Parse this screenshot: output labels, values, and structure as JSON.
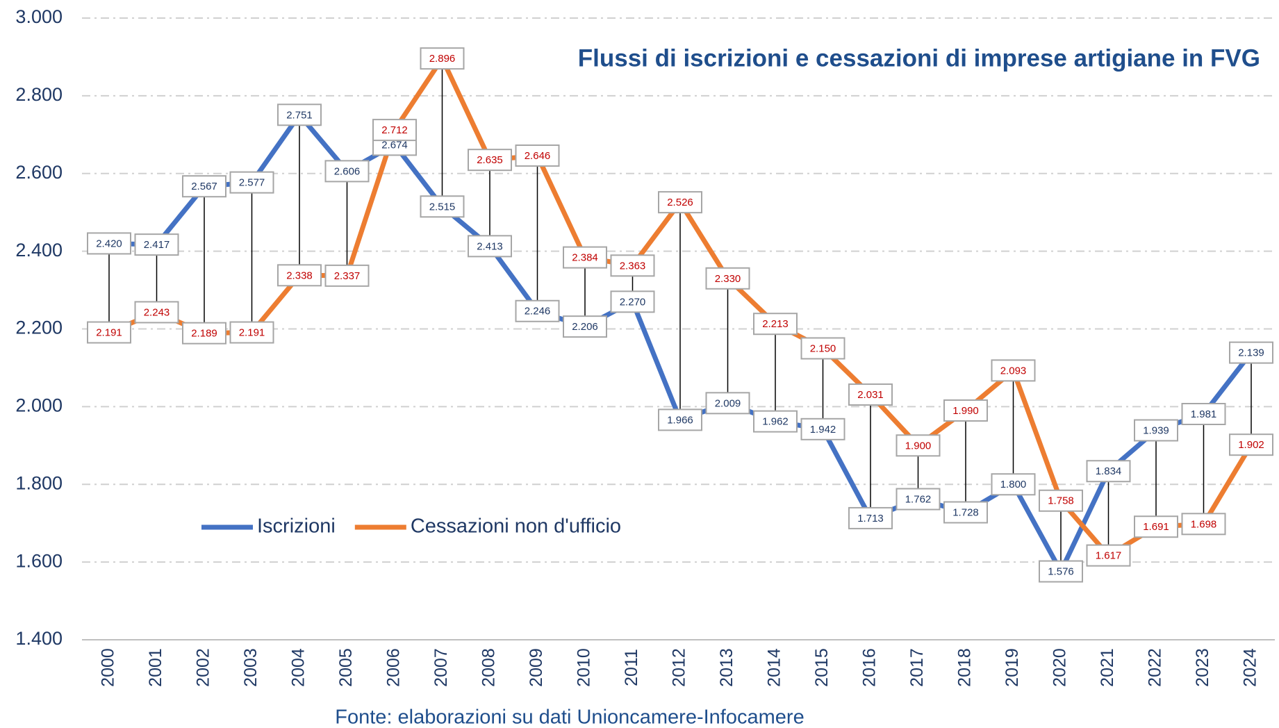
{
  "chart_data": {
    "type": "line",
    "title": "Flussi di iscrizioni e cessazioni di imprese artigiane in FVG",
    "source": "Fonte: elaborazioni su dati Unioncamere-Infocamere",
    "categories": [
      "2000",
      "2001",
      "2002",
      "2003",
      "2004",
      "2005",
      "2006",
      "2007",
      "2008",
      "2009",
      "2010",
      "2011",
      "2012",
      "2013",
      "2014",
      "2015",
      "2016",
      "2017",
      "2018",
      "2019",
      "2020",
      "2021",
      "2022",
      "2023",
      "2024"
    ],
    "series": [
      {
        "name": "Iscrizioni",
        "color": "#4472c4",
        "label_color": "#1f3864",
        "values": [
          2420,
          2417,
          2567,
          2577,
          2751,
          2606,
          2674,
          2515,
          2413,
          2246,
          2206,
          2270,
          1966,
          2009,
          1962,
          1942,
          1713,
          1762,
          1728,
          1800,
          1576,
          1834,
          1939,
          1981,
          2139
        ],
        "value_labels": [
          "2.420",
          "2.417",
          "2.567",
          "2.577",
          "2.751",
          "2.606",
          "2.674",
          "2.515",
          "2.413",
          "2.246",
          "2.206",
          "2.270",
          "1.966",
          "2.009",
          "1.962",
          "1.942",
          "1.713",
          "1.762",
          "1.728",
          "1.800",
          "1.576",
          "1.834",
          "1.939",
          "1.981",
          "2.139"
        ]
      },
      {
        "name": "Cessazioni non d'ufficio",
        "color": "#ed7d31",
        "label_color": "#c00000",
        "values": [
          2191,
          2243,
          2189,
          2191,
          2338,
          2337,
          2712,
          2896,
          2635,
          2646,
          2384,
          2363,
          2526,
          2330,
          2213,
          2150,
          2031,
          1900,
          1990,
          2093,
          1758,
          1617,
          1691,
          1698,
          1902
        ],
        "value_labels": [
          "2.191",
          "2.243",
          "2.189",
          "2.191",
          "2.338",
          "2.337",
          "2.712",
          "2.896",
          "2.635",
          "2.646",
          "2.384",
          "2.363",
          "2.526",
          "2.330",
          "2.213",
          "2.150",
          "2.031",
          "1.900",
          "1.990",
          "2.093",
          "1.758",
          "1.617",
          "1.691",
          "1.698",
          "1.902"
        ]
      }
    ],
    "ylim": [
      1400,
      3000
    ],
    "yticks": [
      {
        "value": 1400,
        "label": "1.400"
      },
      {
        "value": 1600,
        "label": "1.600"
      },
      {
        "value": 1800,
        "label": "1.800"
      },
      {
        "value": 2000,
        "label": "2.000"
      },
      {
        "value": 2200,
        "label": "2.200"
      },
      {
        "value": 2400,
        "label": "2.400"
      },
      {
        "value": 2600,
        "label": "2.600"
      },
      {
        "value": 2800,
        "label": "2.800"
      },
      {
        "value": 3000,
        "label": "3.000"
      }
    ],
    "grid": true,
    "hi_lo_lines": true,
    "legend": "lower-left"
  }
}
